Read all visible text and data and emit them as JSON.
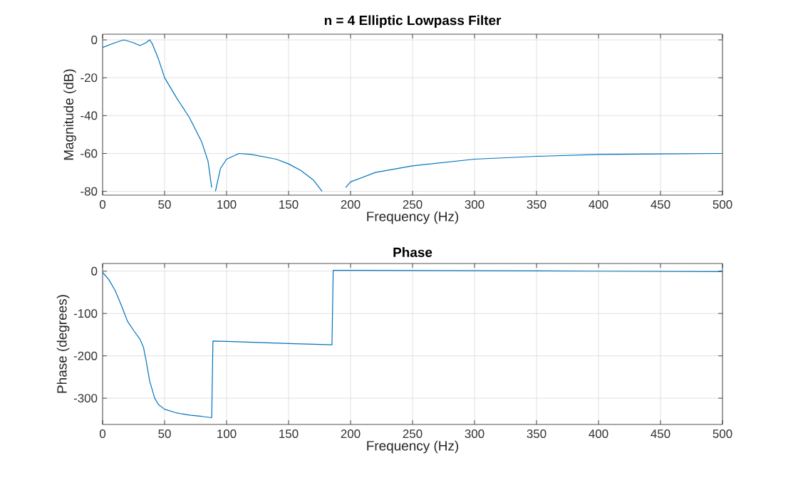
{
  "chart_data": [
    {
      "type": "line",
      "title": "n = 4 Elliptic Lowpass Filter",
      "xlabel": "Frequency (Hz)",
      "ylabel": "Magnitude (dB)",
      "color": "#0072bd",
      "grid": true,
      "x": [
        0,
        10,
        17,
        25,
        30,
        35,
        38,
        40,
        45,
        50,
        60,
        70,
        80,
        85,
        88,
        89.5,
        91,
        95,
        100,
        110,
        120,
        140,
        150,
        160,
        170,
        177,
        180,
        186,
        193,
        196,
        200,
        220,
        250,
        300,
        350,
        400,
        450,
        500
      ],
      "values": [
        -4,
        -1.5,
        0,
        -1.5,
        -3,
        -1.5,
        0,
        -2,
        -10,
        -20,
        -31,
        -41,
        -54,
        -64,
        -78,
        null,
        -80,
        -68,
        -63,
        -60,
        -60.5,
        -63,
        -65.5,
        -69,
        -74,
        -80,
        null,
        null,
        null,
        -78,
        -75,
        -70,
        -66.5,
        -63,
        -61.5,
        -60.5,
        -60.2,
        -60
      ],
      "xlim": [
        0,
        500
      ],
      "ylim": [
        -82,
        3
      ],
      "xticks": [
        0,
        50,
        100,
        150,
        200,
        250,
        300,
        350,
        400,
        450,
        500
      ],
      "yticks": [
        -80,
        -60,
        -40,
        -20,
        0
      ]
    },
    {
      "type": "line",
      "title": "Phase",
      "xlabel": "Frequency (Hz)",
      "ylabel": "Phase (degrees)",
      "color": "#0072bd",
      "grid": true,
      "x": [
        0,
        5,
        10,
        15,
        20,
        25,
        30,
        33,
        35,
        38,
        42,
        45,
        50,
        60,
        70,
        80,
        88,
        89,
        100,
        150,
        185,
        186,
        200,
        300,
        400,
        500
      ],
      "values": [
        -3,
        -20,
        -45,
        -80,
        -118,
        -140,
        -160,
        -180,
        -210,
        -260,
        -300,
        -315,
        -326,
        -335,
        -340,
        -343,
        -346,
        -165,
        -166,
        -171,
        -174,
        2,
        2,
        1,
        0,
        -1
      ],
      "xlim": [
        0,
        500
      ],
      "ylim": [
        -362,
        18
      ],
      "xticks": [
        0,
        50,
        100,
        150,
        200,
        250,
        300,
        350,
        400,
        450,
        500
      ],
      "yticks": [
        -300,
        -200,
        -100,
        0
      ]
    }
  ]
}
